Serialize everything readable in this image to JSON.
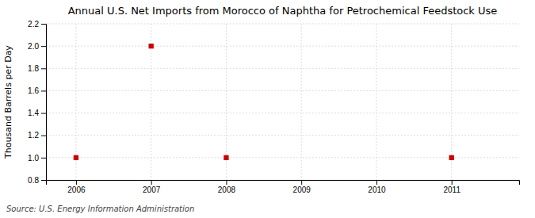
{
  "chart_data": {
    "type": "scatter",
    "title": "Annual U.S. Net Imports from Morocco of Naphtha for Petrochemical Feedstock Use",
    "ylabel": "Thousand Barrels per Day",
    "source": "Source: U.S. Energy Information Administration",
    "x": [
      2006,
      2007,
      2008,
      2011
    ],
    "values": [
      1.0,
      2.0,
      1.0,
      1.0
    ],
    "color": "#CC0000",
    "marker": "square",
    "xlim": [
      2005.6,
      2011.9
    ],
    "ylim": [
      0.8,
      2.2
    ],
    "xticks": [
      2006,
      2007,
      2008,
      2009,
      2010,
      2011
    ],
    "yticks": [
      0.8,
      {
        "value": 1.0,
        "label": "1.0"
      },
      1.2,
      1.4,
      1.6,
      1.8,
      {
        "value": 2.0,
        "label": "2.0"
      },
      2.2
    ],
    "grid": true
  }
}
